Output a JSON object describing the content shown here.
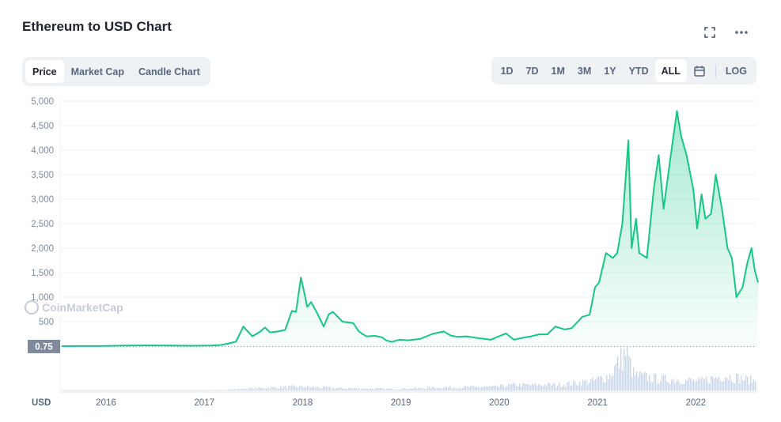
{
  "header": {
    "title": "Ethereum to USD Chart",
    "fullscreen_icon": "fullscreen-icon",
    "more_icon": "more-dots-icon"
  },
  "tabs": [
    {
      "label": "Price",
      "active": true
    },
    {
      "label": "Market Cap",
      "active": false
    },
    {
      "label": "Candle Chart",
      "active": false
    }
  ],
  "ranges": [
    {
      "label": "1D",
      "active": false
    },
    {
      "label": "7D",
      "active": false
    },
    {
      "label": "1M",
      "active": false
    },
    {
      "label": "3M",
      "active": false
    },
    {
      "label": "1Y",
      "active": false
    },
    {
      "label": "YTD",
      "active": false
    },
    {
      "label": "ALL",
      "active": true
    }
  ],
  "calendar_icon": "calendar-icon",
  "log_label": "LOG",
  "colors": {
    "line": "#16c784",
    "area_top": "#16c784",
    "grid": "#eff2f5",
    "axis_text": "#808a9d",
    "volume": "#cfd6e4",
    "baseline_label_bg": "#808a9d"
  },
  "chart_data": {
    "type": "area",
    "title": "Ethereum to USD Chart",
    "xlabel": "",
    "ylabel": "",
    "currency_label": "USD",
    "watermark": "CoinMarketCap",
    "ylim": [
      0,
      5000
    ],
    "xlim": [
      "2015-08",
      "2022-09"
    ],
    "y_ticks": [
      "1,000",
      "1,500",
      "2,000",
      "2,500",
      "3,000",
      "3,500",
      "4,000",
      "4,500",
      "5,000"
    ],
    "y_tick_values": [
      1000,
      1500,
      2000,
      2500,
      3000,
      3500,
      4000,
      4500,
      5000
    ],
    "y_ticks_partial": [
      "500"
    ],
    "baseline_label": "0.75",
    "baseline_value": 0.75,
    "x_ticks": [
      "2016",
      "2017",
      "2018",
      "2019",
      "2020",
      "2021",
      "2022"
    ],
    "grid": true,
    "series": [
      {
        "x": [
          "2015-08-07",
          "2015-10-01",
          "2016-01-01",
          "2016-03-15",
          "2016-06-15",
          "2016-09-01",
          "2016-12-01",
          "2017-02-15",
          "2017-03-15",
          "2017-04-15",
          "2017-05-15",
          "2017-06-12",
          "2017-07-15",
          "2017-08-15",
          "2017-09-01",
          "2017-09-20",
          "2017-10-20",
          "2017-11-15",
          "2017-12-10",
          "2017-12-25",
          "2018-01-13",
          "2018-01-25",
          "2018-02-06",
          "2018-02-20",
          "2018-03-10",
          "2018-04-06",
          "2018-04-25",
          "2018-05-10",
          "2018-06-15",
          "2018-07-25",
          "2018-08-15",
          "2018-09-12",
          "2018-10-15",
          "2018-11-10",
          "2018-11-25",
          "2018-12-14",
          "2019-01-15",
          "2019-02-15",
          "2019-04-01",
          "2019-05-15",
          "2019-06-26",
          "2019-07-20",
          "2019-08-15",
          "2019-09-20",
          "2019-10-25",
          "2019-12-18",
          "2020-02-14",
          "2020-03-13",
          "2020-04-15",
          "2020-05-15",
          "2020-06-15",
          "2020-07-15",
          "2020-08-15",
          "2020-09-20",
          "2020-10-15",
          "2020-11-24",
          "2020-12-20",
          "2021-01-10",
          "2021-01-25",
          "2021-02-20",
          "2021-03-15",
          "2021-04-01",
          "2021-04-20",
          "2021-05-12",
          "2021-05-24",
          "2021-06-10",
          "2021-06-22",
          "2021-07-20",
          "2021-08-15",
          "2021-09-03",
          "2021-09-21",
          "2021-10-15",
          "2021-11-10",
          "2021-11-25",
          "2021-12-15",
          "2022-01-10",
          "2022-01-24",
          "2022-02-10",
          "2022-02-24",
          "2022-03-15",
          "2022-04-02",
          "2022-04-25",
          "2022-05-15",
          "2022-06-01",
          "2022-06-18",
          "2022-07-10",
          "2022-07-28",
          "2022-08-13",
          "2022-08-25",
          "2022-09-07"
        ],
        "y": [
          0.75,
          1,
          1,
          10,
          14,
          12,
          8,
          13,
          20,
          50,
          90,
          400,
          200,
          300,
          380,
          280,
          300,
          330,
          720,
          700,
          1400,
          1100,
          800,
          900,
          700,
          400,
          650,
          700,
          500,
          470,
          300,
          200,
          210,
          180,
          120,
          85,
          130,
          120,
          150,
          250,
          300,
          220,
          190,
          200,
          170,
          130,
          260,
          130,
          170,
          200,
          240,
          240,
          400,
          340,
          370,
          600,
          640,
          1200,
          1300,
          1900,
          1800,
          1900,
          2500,
          4200,
          2000,
          2600,
          1900,
          1800,
          3200,
          3900,
          2800,
          3800,
          4800,
          4300,
          3900,
          3200,
          2400,
          3100,
          2600,
          2700,
          3500,
          2800,
          2000,
          1800,
          1000,
          1200,
          1700,
          2000,
          1550,
          1300
        ]
      }
    ],
    "volume": {
      "description_units": "relative daily volume",
      "x": [
        "2015-08",
        "2016-06",
        "2017-03",
        "2017-08",
        "2018-01",
        "2018-06",
        "2019-01",
        "2019-06",
        "2020-01",
        "2020-03",
        "2020-09",
        "2021-01",
        "2021-03",
        "2021-05",
        "2021-06",
        "2021-09",
        "2021-12",
        "2022-02",
        "2022-05",
        "2022-06",
        "2022-09"
      ],
      "values": [
        0,
        0.5,
        1,
        6,
        10,
        6,
        4,
        8,
        9,
        14,
        15,
        25,
        40,
        100,
        40,
        30,
        28,
        24,
        40,
        35,
        25
      ]
    }
  }
}
